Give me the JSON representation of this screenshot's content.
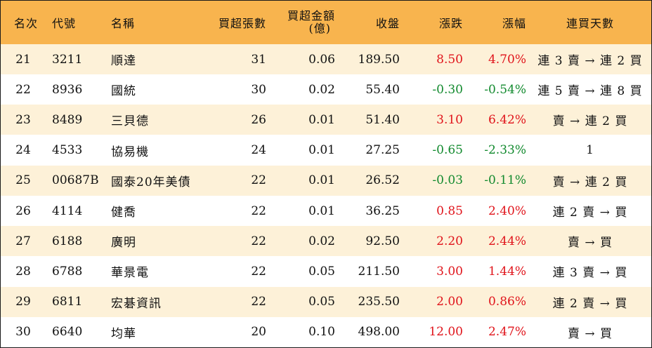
{
  "header": {
    "rank": "名次",
    "code": "代號",
    "name": "名稱",
    "net_buy_lots": "買超張數",
    "net_buy_amount_line1": "買超金額",
    "net_buy_amount_line2": "(億)",
    "close": "收盤",
    "change": "漲跌",
    "change_pct": "漲幅",
    "streak": "連買天數"
  },
  "colors": {
    "header_bg": "#f8b44e",
    "band_bg": "#fdf1d8",
    "up": "#e0141b",
    "down": "#128a2e"
  },
  "rows": [
    {
      "rank": "21",
      "code": "3211",
      "name": "順達",
      "lots": "31",
      "amount": "0.06",
      "close": "189.50",
      "change": "8.50",
      "change_pct": "4.70%",
      "dir": "up",
      "streak": "連 3 賣 → 連 2 買"
    },
    {
      "rank": "22",
      "code": "8936",
      "name": "國統",
      "lots": "30",
      "amount": "0.02",
      "close": "55.40",
      "change": "-0.30",
      "change_pct": "-0.54%",
      "dir": "down",
      "streak": "連 5 賣 → 連 8 買"
    },
    {
      "rank": "23",
      "code": "8489",
      "name": "三貝德",
      "lots": "26",
      "amount": "0.01",
      "close": "51.40",
      "change": "3.10",
      "change_pct": "6.42%",
      "dir": "up",
      "streak": "賣 → 連 2 買"
    },
    {
      "rank": "24",
      "code": "4533",
      "name": "協易機",
      "lots": "24",
      "amount": "0.01",
      "close": "27.25",
      "change": "-0.65",
      "change_pct": "-2.33%",
      "dir": "down",
      "streak": "1"
    },
    {
      "rank": "25",
      "code": "00687B",
      "name": "國泰20年美債",
      "lots": "22",
      "amount": "0.01",
      "close": "26.52",
      "change": "-0.03",
      "change_pct": "-0.11%",
      "dir": "down",
      "streak": "賣 → 連 2 買"
    },
    {
      "rank": "26",
      "code": "4114",
      "name": "健喬",
      "lots": "22",
      "amount": "0.01",
      "close": "36.25",
      "change": "0.85",
      "change_pct": "2.40%",
      "dir": "up",
      "streak": "連 2 賣 → 買"
    },
    {
      "rank": "27",
      "code": "6188",
      "name": "廣明",
      "lots": "22",
      "amount": "0.02",
      "close": "92.50",
      "change": "2.20",
      "change_pct": "2.44%",
      "dir": "up",
      "streak": "賣 → 買"
    },
    {
      "rank": "28",
      "code": "6788",
      "name": "華景電",
      "lots": "22",
      "amount": "0.05",
      "close": "211.50",
      "change": "3.00",
      "change_pct": "1.44%",
      "dir": "up",
      "streak": "連 3 賣 → 買"
    },
    {
      "rank": "29",
      "code": "6811",
      "name": "宏碁資訊",
      "lots": "22",
      "amount": "0.05",
      "close": "235.50",
      "change": "2.00",
      "change_pct": "0.86%",
      "dir": "up",
      "streak": "連 2 賣 → 買"
    },
    {
      "rank": "30",
      "code": "6640",
      "name": "均華",
      "lots": "20",
      "amount": "0.10",
      "close": "498.00",
      "change": "12.00",
      "change_pct": "2.47%",
      "dir": "up",
      "streak": "賣 → 買"
    }
  ]
}
